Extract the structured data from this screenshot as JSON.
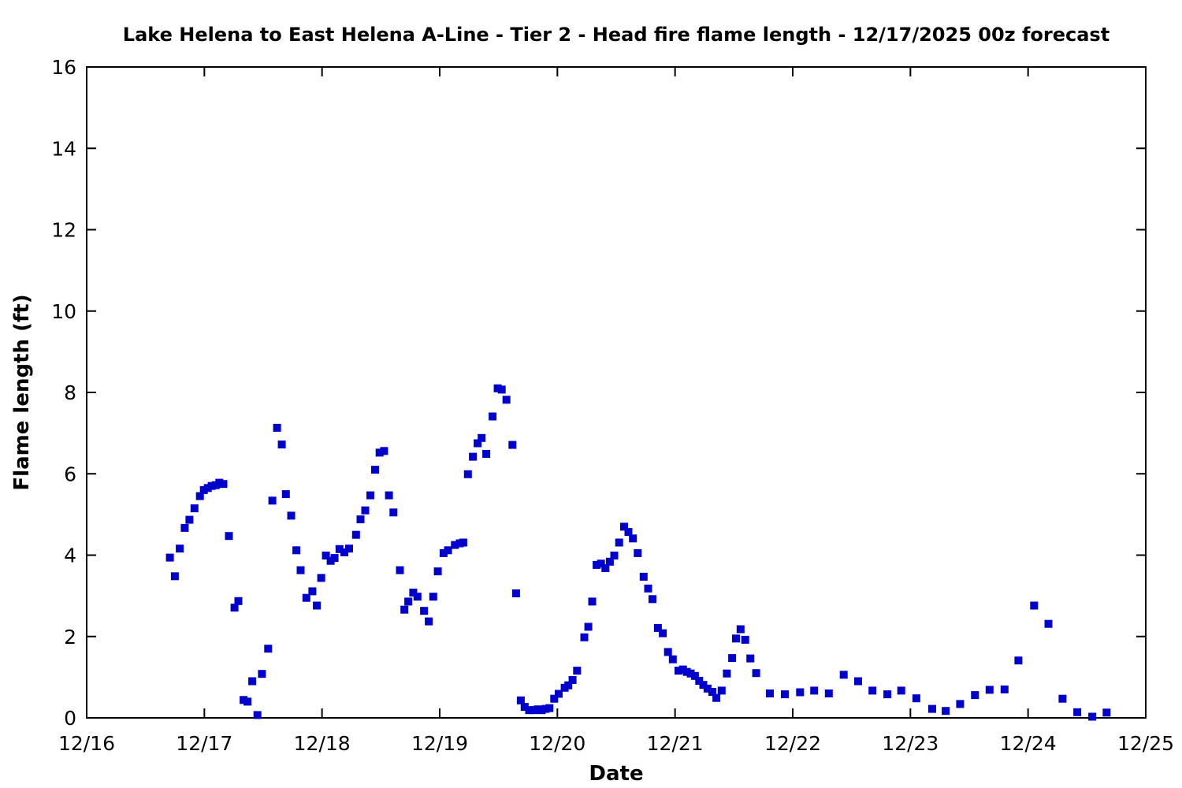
{
  "chart_data": {
    "type": "scatter",
    "title": "Lake Helena to East Helena A-Line - Tier 2 - Head fire flame length - 12/17/2025 00z forecast",
    "xlabel": "Date",
    "ylabel": "Flame length (ft)",
    "x_tick_labels": [
      "12/16",
      "12/17",
      "12/18",
      "12/19",
      "12/20",
      "12/21",
      "12/22",
      "12/23",
      "12/24",
      "12/25"
    ],
    "x_axis_range_days": [
      0,
      9
    ],
    "y_ticks": [
      0,
      2,
      4,
      6,
      8,
      10,
      12,
      14,
      16
    ],
    "ylim": [
      0,
      16
    ],
    "grid": false,
    "legend": "none",
    "marker": {
      "shape": "square",
      "color": "#0000cd",
      "size": 10
    },
    "point_format": [
      "days_after_12_16_00z",
      "flame_length_ft"
    ],
    "series": [
      {
        "name": "Head fire flame length",
        "points": [
          [
            0.707,
            3.94
          ],
          [
            0.749,
            3.48
          ],
          [
            0.791,
            4.16
          ],
          [
            0.833,
            4.67
          ],
          [
            0.873,
            4.87
          ],
          [
            0.916,
            5.15
          ],
          [
            0.962,
            5.45
          ],
          [
            0.996,
            5.6
          ],
          [
            1.029,
            5.65
          ],
          [
            1.062,
            5.7
          ],
          [
            1.096,
            5.72
          ],
          [
            1.127,
            5.78
          ],
          [
            1.162,
            5.75
          ],
          [
            1.209,
            4.47
          ],
          [
            1.256,
            2.71
          ],
          [
            1.289,
            2.87
          ],
          [
            1.333,
            0.44
          ],
          [
            1.367,
            0.4
          ],
          [
            1.407,
            0.9
          ],
          [
            1.451,
            0.07
          ],
          [
            1.489,
            1.08
          ],
          [
            1.542,
            1.7
          ],
          [
            1.578,
            5.34
          ],
          [
            1.618,
            7.13
          ],
          [
            1.658,
            6.72
          ],
          [
            1.693,
            5.5
          ],
          [
            1.738,
            4.97
          ],
          [
            1.782,
            4.12
          ],
          [
            1.818,
            3.63
          ],
          [
            1.867,
            2.95
          ],
          [
            1.918,
            3.11
          ],
          [
            1.956,
            2.76
          ],
          [
            1.993,
            3.44
          ],
          [
            2.033,
            3.99
          ],
          [
            2.073,
            3.86
          ],
          [
            2.107,
            3.93
          ],
          [
            2.148,
            4.15
          ],
          [
            2.19,
            4.07
          ],
          [
            2.23,
            4.16
          ],
          [
            2.289,
            4.5
          ],
          [
            2.327,
            4.88
          ],
          [
            2.367,
            5.1
          ],
          [
            2.411,
            5.47
          ],
          [
            2.451,
            6.1
          ],
          [
            2.489,
            6.52
          ],
          [
            2.527,
            6.56
          ],
          [
            2.569,
            5.47
          ],
          [
            2.607,
            5.05
          ],
          [
            2.662,
            3.63
          ],
          [
            2.7,
            2.66
          ],
          [
            2.733,
            2.86
          ],
          [
            2.775,
            3.08
          ],
          [
            2.811,
            2.98
          ],
          [
            2.867,
            2.63
          ],
          [
            2.907,
            2.37
          ],
          [
            2.945,
            2.98
          ],
          [
            2.984,
            3.6
          ],
          [
            3.033,
            4.05
          ],
          [
            3.071,
            4.12
          ],
          [
            3.129,
            4.25
          ],
          [
            3.171,
            4.29
          ],
          [
            3.2,
            4.31
          ],
          [
            3.24,
            5.99
          ],
          [
            3.282,
            6.42
          ],
          [
            3.322,
            6.75
          ],
          [
            3.356,
            6.88
          ],
          [
            3.396,
            6.49
          ],
          [
            3.449,
            7.41
          ],
          [
            3.493,
            8.1
          ],
          [
            3.527,
            8.07
          ],
          [
            3.567,
            7.82
          ],
          [
            3.618,
            6.71
          ],
          [
            3.649,
            3.06
          ],
          [
            3.689,
            0.43
          ],
          [
            3.722,
            0.27
          ],
          [
            3.76,
            0.19
          ],
          [
            3.8,
            0.19
          ],
          [
            3.833,
            0.21
          ],
          [
            3.867,
            0.19
          ],
          [
            3.9,
            0.22
          ],
          [
            3.933,
            0.24
          ],
          [
            3.973,
            0.47
          ],
          [
            4.011,
            0.59
          ],
          [
            4.062,
            0.74
          ],
          [
            4.093,
            0.8
          ],
          [
            4.129,
            0.93
          ],
          [
            4.167,
            1.16
          ],
          [
            4.229,
            1.98
          ],
          [
            4.263,
            2.24
          ],
          [
            4.296,
            2.86
          ],
          [
            4.333,
            3.76
          ],
          [
            4.371,
            3.79
          ],
          [
            4.408,
            3.68
          ],
          [
            4.446,
            3.84
          ],
          [
            4.483,
            3.99
          ],
          [
            4.525,
            4.31
          ],
          [
            4.567,
            4.7
          ],
          [
            4.604,
            4.57
          ],
          [
            4.642,
            4.41
          ],
          [
            4.683,
            4.05
          ],
          [
            4.733,
            3.47
          ],
          [
            4.771,
            3.18
          ],
          [
            4.808,
            2.92
          ],
          [
            4.854,
            2.21
          ],
          [
            4.896,
            2.08
          ],
          [
            4.94,
            1.62
          ],
          [
            4.981,
            1.44
          ],
          [
            5.029,
            1.16
          ],
          [
            5.067,
            1.19
          ],
          [
            5.1,
            1.13
          ],
          [
            5.133,
            1.09
          ],
          [
            5.169,
            1.03
          ],
          [
            5.205,
            0.91
          ],
          [
            5.24,
            0.81
          ],
          [
            5.276,
            0.72
          ],
          [
            5.316,
            0.64
          ],
          [
            5.351,
            0.49
          ],
          [
            5.396,
            0.67
          ],
          [
            5.44,
            1.09
          ],
          [
            5.485,
            1.47
          ],
          [
            5.518,
            1.95
          ],
          [
            5.557,
            2.18
          ],
          [
            5.596,
            1.92
          ],
          [
            5.64,
            1.46
          ],
          [
            5.689,
            1.1
          ],
          [
            5.806,
            0.6
          ],
          [
            5.933,
            0.58
          ],
          [
            6.062,
            0.63
          ],
          [
            6.182,
            0.67
          ],
          [
            6.307,
            0.6
          ],
          [
            6.433,
            1.06
          ],
          [
            6.556,
            0.9
          ],
          [
            6.678,
            0.67
          ],
          [
            6.804,
            0.58
          ],
          [
            6.922,
            0.67
          ],
          [
            7.051,
            0.48
          ],
          [
            7.185,
            0.22
          ],
          [
            7.3,
            0.17
          ],
          [
            7.422,
            0.34
          ],
          [
            7.549,
            0.56
          ],
          [
            7.673,
            0.69
          ],
          [
            7.8,
            0.7
          ],
          [
            7.918,
            1.41
          ],
          [
            8.051,
            2.76
          ],
          [
            8.173,
            2.31
          ],
          [
            8.293,
            0.47
          ],
          [
            8.418,
            0.14
          ],
          [
            8.545,
            0.03
          ],
          [
            8.667,
            0.13
          ]
        ]
      }
    ]
  }
}
